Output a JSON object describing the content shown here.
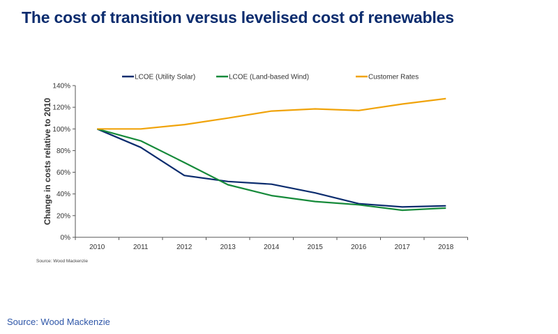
{
  "title": "The cost of transition versus levelised cost of renewables",
  "footer_source": "Source: Wood Mackenzie",
  "chart_data": {
    "type": "line",
    "title": "",
    "xlabel": "",
    "ylabel": "Change in costs relative to 2010",
    "categories": [
      "2010",
      "2011",
      "2012",
      "2013",
      "2014",
      "2015",
      "2016",
      "2017",
      "2018"
    ],
    "ylim": [
      0,
      140
    ],
    "yticks": [
      "0%",
      "20%",
      "40%",
      "60%",
      "80%",
      "100%",
      "120%",
      "140%"
    ],
    "grid": false,
    "legend_position": "top",
    "series": [
      {
        "name": "LCOE (Utility Solar)",
        "color": "#0b2c6e",
        "values": [
          100,
          83,
          57,
          51.5,
          49,
          41,
          31,
          28,
          29
        ]
      },
      {
        "name": "LCOE (Land-based Wind)",
        "color": "#168a3a",
        "values": [
          100,
          89,
          69,
          48.5,
          38.5,
          33,
          30,
          25,
          27
        ]
      },
      {
        "name": "Customer Rates",
        "color": "#f0a30a",
        "values": [
          100,
          100,
          104,
          110,
          116.5,
          118.5,
          117,
          123,
          128
        ]
      }
    ],
    "source_note": "Source: Wood Mackenzie"
  }
}
